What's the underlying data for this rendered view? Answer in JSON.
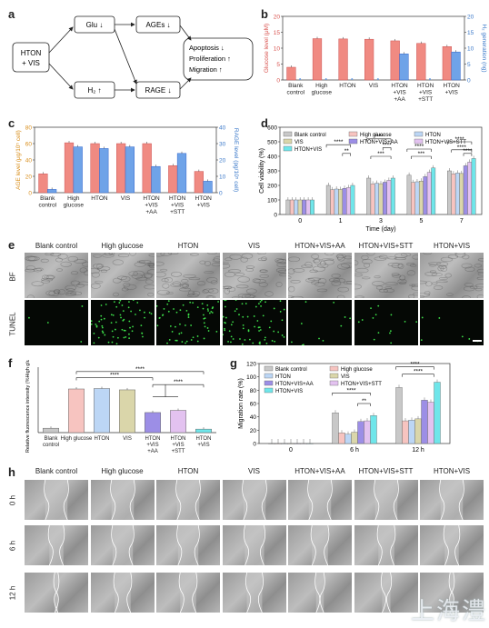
{
  "panel_letters": {
    "a": "a",
    "b": "b",
    "c": "c",
    "d": "d",
    "e": "e",
    "f": "f",
    "g": "g",
    "h": "h"
  },
  "schematic": {
    "start": [
      "HTON",
      "+ VIS"
    ],
    "glu": "Glu ↓",
    "ages": "AGEs ↓",
    "h2": "H₂ ↑",
    "rage": "RAGE ↓",
    "outcomes": [
      "Apoptosis  ↓",
      "Proliferation ↑",
      "Migration  ↑"
    ]
  },
  "colors": {
    "salmon": "#f08a82",
    "blue": "#6fa3e8",
    "grey": "#c8c8c8",
    "pink": "#f7c4c0",
    "lightblue": "#bcd6f5",
    "khaki": "#dad6aa",
    "purple": "#9c8ee6",
    "lavender": "#e3c2f0",
    "cyan": "#6fe6ea",
    "bar_edge": "#555"
  },
  "chart_data": [
    {
      "panel": "b",
      "type": "bar",
      "categories": [
        "Blank\ncontrol",
        "High\nglucose",
        "HTON",
        "VIS",
        "HTON\n+VIS\n+AA",
        "HTON\n+VIS\n+STT",
        "HTON\n+VIS"
      ],
      "series": [
        {
          "name": "Glucose level (μM)",
          "values": [
            4,
            13,
            12.9,
            12.8,
            12.3,
            11.5,
            10.5
          ]
        },
        {
          "name": "H₂ generation (ng)",
          "values": [
            0,
            0,
            0,
            0,
            8.2,
            0,
            8.8
          ]
        }
      ],
      "ylabel": "Glucose level (μM)",
      "y2label": "H₂ generation (ng)",
      "ylim": [
        0,
        20
      ],
      "y2lim": [
        0,
        20
      ],
      "yticks": [
        0,
        5,
        10,
        15,
        20
      ],
      "y2ticks": [
        0,
        5,
        10,
        15,
        20
      ]
    },
    {
      "panel": "c",
      "type": "bar",
      "categories": [
        "Blank\ncontrol",
        "High\nglucose",
        "HTON",
        "VIS",
        "HTON\n+VIS\n+AA",
        "HTON\n+VIS\n+STT",
        "HTON\n+VIS"
      ],
      "series": [
        {
          "name": "AGE level (μg/10⁵ cell)",
          "values": [
            23,
            61,
            60,
            60,
            60,
            33,
            26
          ]
        },
        {
          "name": "RAGE level (pg/10⁵ cell)",
          "values": [
            2,
            28,
            27,
            28,
            16,
            24,
            7
          ]
        }
      ],
      "ylabel": "AGE level (μg/10⁵ cell)",
      "y2label": "RAGE level (pg/10⁵ cell)",
      "ylim": [
        0,
        80
      ],
      "y2lim": [
        0,
        40
      ],
      "yticks": [
        0,
        20,
        40,
        60,
        80
      ],
      "y2ticks": [
        0,
        10,
        20,
        30,
        40
      ]
    },
    {
      "panel": "d",
      "type": "bar",
      "legend": [
        "Blank control",
        "High glucose",
        "HTON",
        "VIS",
        "HTON+VIS+AA",
        "HTON+VIS+STT",
        "HTON+VIS"
      ],
      "categories": [
        "0",
        "1",
        "3",
        "5",
        "7"
      ],
      "xlabel": "Time (day)",
      "ylabel": "Cell viability (%)",
      "ylim": [
        0,
        600
      ],
      "yticks": [
        0,
        100,
        200,
        300,
        400,
        500,
        600
      ],
      "series": [
        {
          "name": "Blank control",
          "values": [
            100,
            200,
            250,
            270,
            300
          ]
        },
        {
          "name": "High glucose",
          "values": [
            100,
            170,
            210,
            220,
            280
          ]
        },
        {
          "name": "HTON",
          "values": [
            100,
            175,
            215,
            225,
            285
          ]
        },
        {
          "name": "VIS",
          "values": [
            100,
            172,
            212,
            230,
            282
          ]
        },
        {
          "name": "HTON+VIS+AA",
          "values": [
            100,
            180,
            222,
            260,
            335
          ]
        },
        {
          "name": "HTON+VIS+STT",
          "values": [
            100,
            185,
            235,
            290,
            360
          ]
        },
        {
          "name": "HTON+VIS",
          "values": [
            100,
            200,
            250,
            320,
            385
          ]
        }
      ],
      "sig": [
        "****",
        "**",
        "****",
        "****",
        "***",
        "****",
        "***",
        "****",
        "****",
        "****"
      ]
    },
    {
      "panel": "f",
      "type": "bar",
      "categories": [
        "Blank\ncontrol",
        "High glucose",
        "HTON",
        "VIS",
        "HTON\n+VIS\n+AA",
        "HTON\n+VIS\n+STT",
        "HTON\n+VIS"
      ],
      "values": [
        10,
        100,
        101,
        98,
        46,
        51,
        8
      ],
      "ylabel": "Relative fluorescence intensity (%High glucose)",
      "ylim": [
        0,
        150
      ],
      "sig": [
        "****",
        "****",
        "****"
      ]
    },
    {
      "panel": "g",
      "type": "bar",
      "legend": [
        "Blank control",
        "High glucose",
        "HTON",
        "VIS",
        "HTON+VIS+AA",
        "HTON+VIS+STT",
        "HTON+VIS"
      ],
      "categories": [
        "0",
        "6 h",
        "12 h"
      ],
      "ylabel": "Migration rate (%)",
      "ylim": [
        0,
        120
      ],
      "yticks": [
        0,
        20,
        40,
        60,
        80,
        100,
        120
      ],
      "series": [
        {
          "name": "Blank control",
          "values": [
            0,
            46,
            84
          ]
        },
        {
          "name": "High glucose",
          "values": [
            0,
            16,
            34
          ]
        },
        {
          "name": "HTON",
          "values": [
            0,
            14,
            35
          ]
        },
        {
          "name": "VIS",
          "values": [
            0,
            17,
            37
          ]
        },
        {
          "name": "HTON+VIS+AA",
          "values": [
            0,
            33,
            65
          ]
        },
        {
          "name": "HTON+VIS+STT",
          "values": [
            0,
            34,
            62
          ]
        },
        {
          "name": "HTON+VIS",
          "values": [
            0,
            42,
            92
          ]
        }
      ],
      "sig": [
        "****",
        "**",
        "****",
        "****"
      ]
    }
  ],
  "micrographs": {
    "e_headers": [
      "Blank control",
      "High glucose",
      "HTON",
      "VIS",
      "HTON+VIS+AA",
      "HTON+VIS+STT",
      "HTON+VIS"
    ],
    "e_rows": [
      "BF",
      "TUNEL"
    ],
    "tunel_density": [
      0.05,
      0.95,
      0.85,
      0.95,
      0.15,
      0.2,
      0.08
    ],
    "h_headers": [
      "Blank control",
      "High glucose",
      "HTON",
      "VIS",
      "HTON+VIS+AA",
      "HTON+VIS+STT",
      "HTON+VIS"
    ],
    "h_rows": [
      "0 h",
      "6 h",
      "12 h"
    ]
  },
  "watermark": "上海澧"
}
